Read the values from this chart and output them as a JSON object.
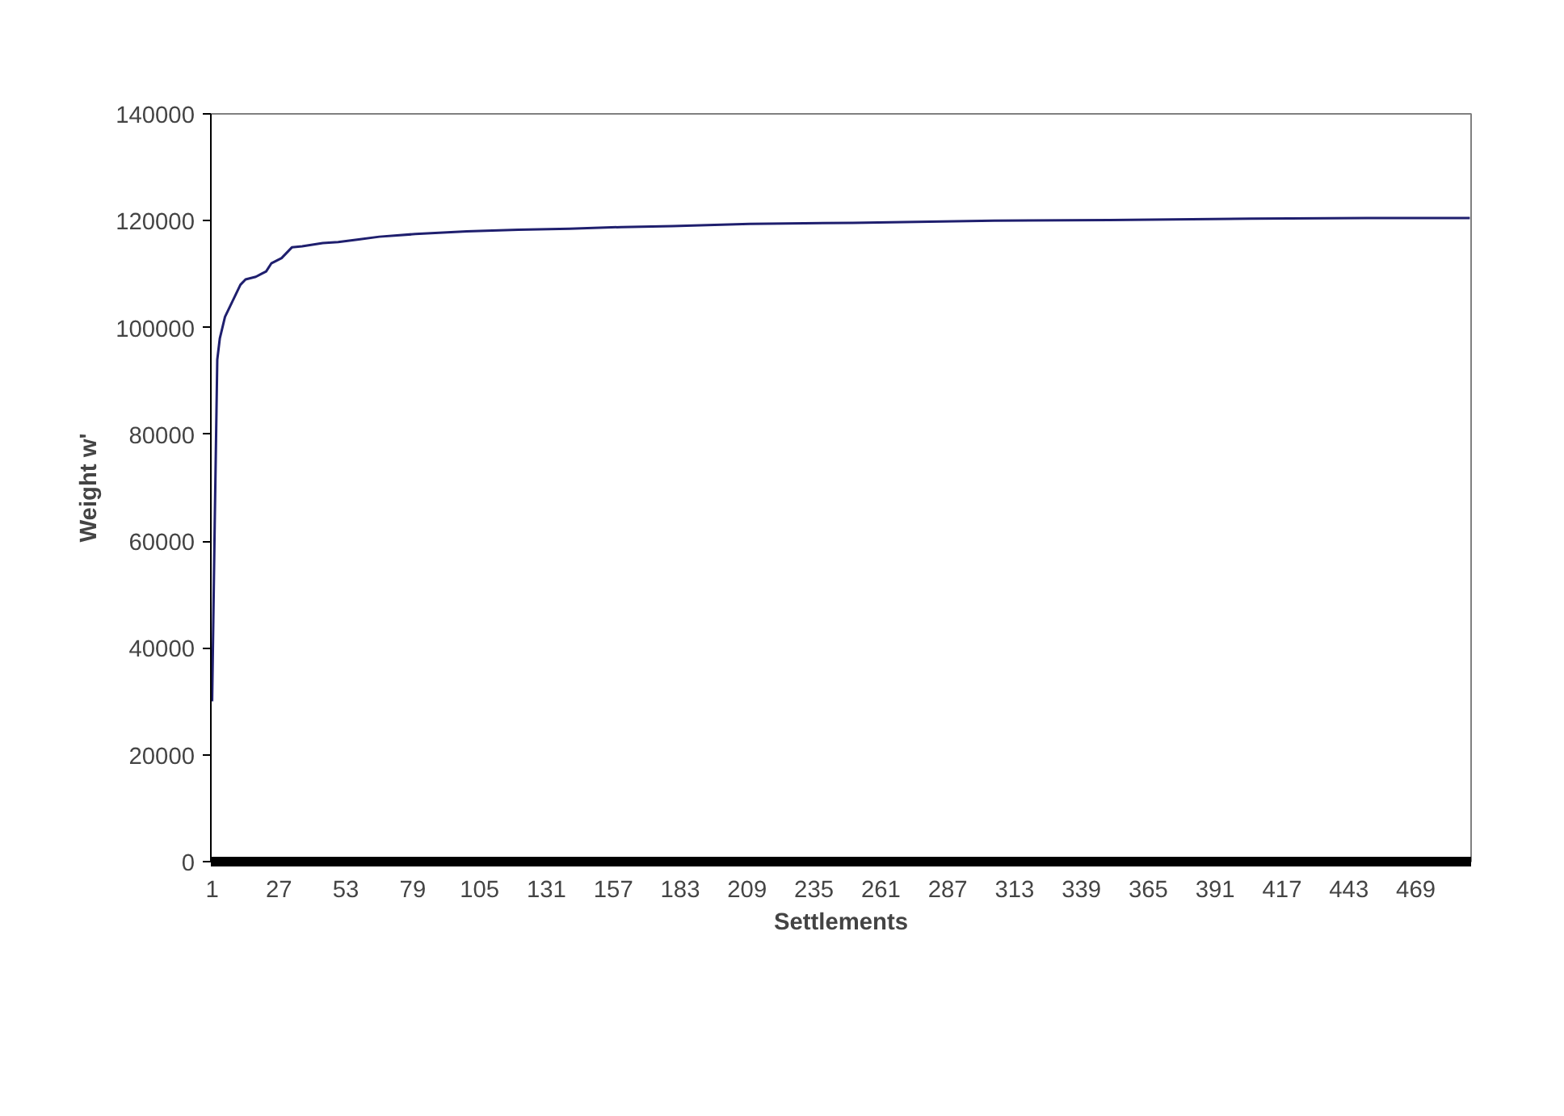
{
  "chart_data": {
    "type": "line",
    "xlabel": "Settlements",
    "ylabel": "Weight w'",
    "xlim": [
      0.5,
      490.5
    ],
    "xticks": [
      1,
      27,
      53,
      79,
      105,
      131,
      157,
      183,
      209,
      235,
      261,
      287,
      313,
      339,
      365,
      391,
      417,
      443,
      469
    ],
    "ylim": [
      0,
      140000
    ],
    "yticks": [
      0,
      20000,
      40000,
      60000,
      80000,
      100000,
      120000,
      140000
    ],
    "grid": false,
    "marker": "none",
    "line_style": "solid",
    "series": [
      {
        "color": "#1f1f6e",
        "x": [
          1,
          2,
          3,
          4,
          5,
          6,
          8,
          10,
          12,
          14,
          18,
          20,
          22,
          24,
          26,
          28,
          32,
          36,
          44,
          50,
          58,
          66,
          80,
          100,
          120,
          140,
          160,
          180,
          210,
          250,
          305,
          350,
          405,
          450,
          490
        ],
        "values": [
          30000,
          63000,
          94000,
          98000,
          100000,
          102000,
          104000,
          106000,
          108000,
          109000,
          109500,
          110000,
          110500,
          112000,
          112500,
          113000,
          115000,
          115200,
          115800,
          116000,
          116500,
          117000,
          117500,
          118000,
          118300,
          118500,
          118800,
          119000,
          119400,
          119600,
          120000,
          120100,
          120400,
          120500,
          120500
        ]
      }
    ]
  }
}
